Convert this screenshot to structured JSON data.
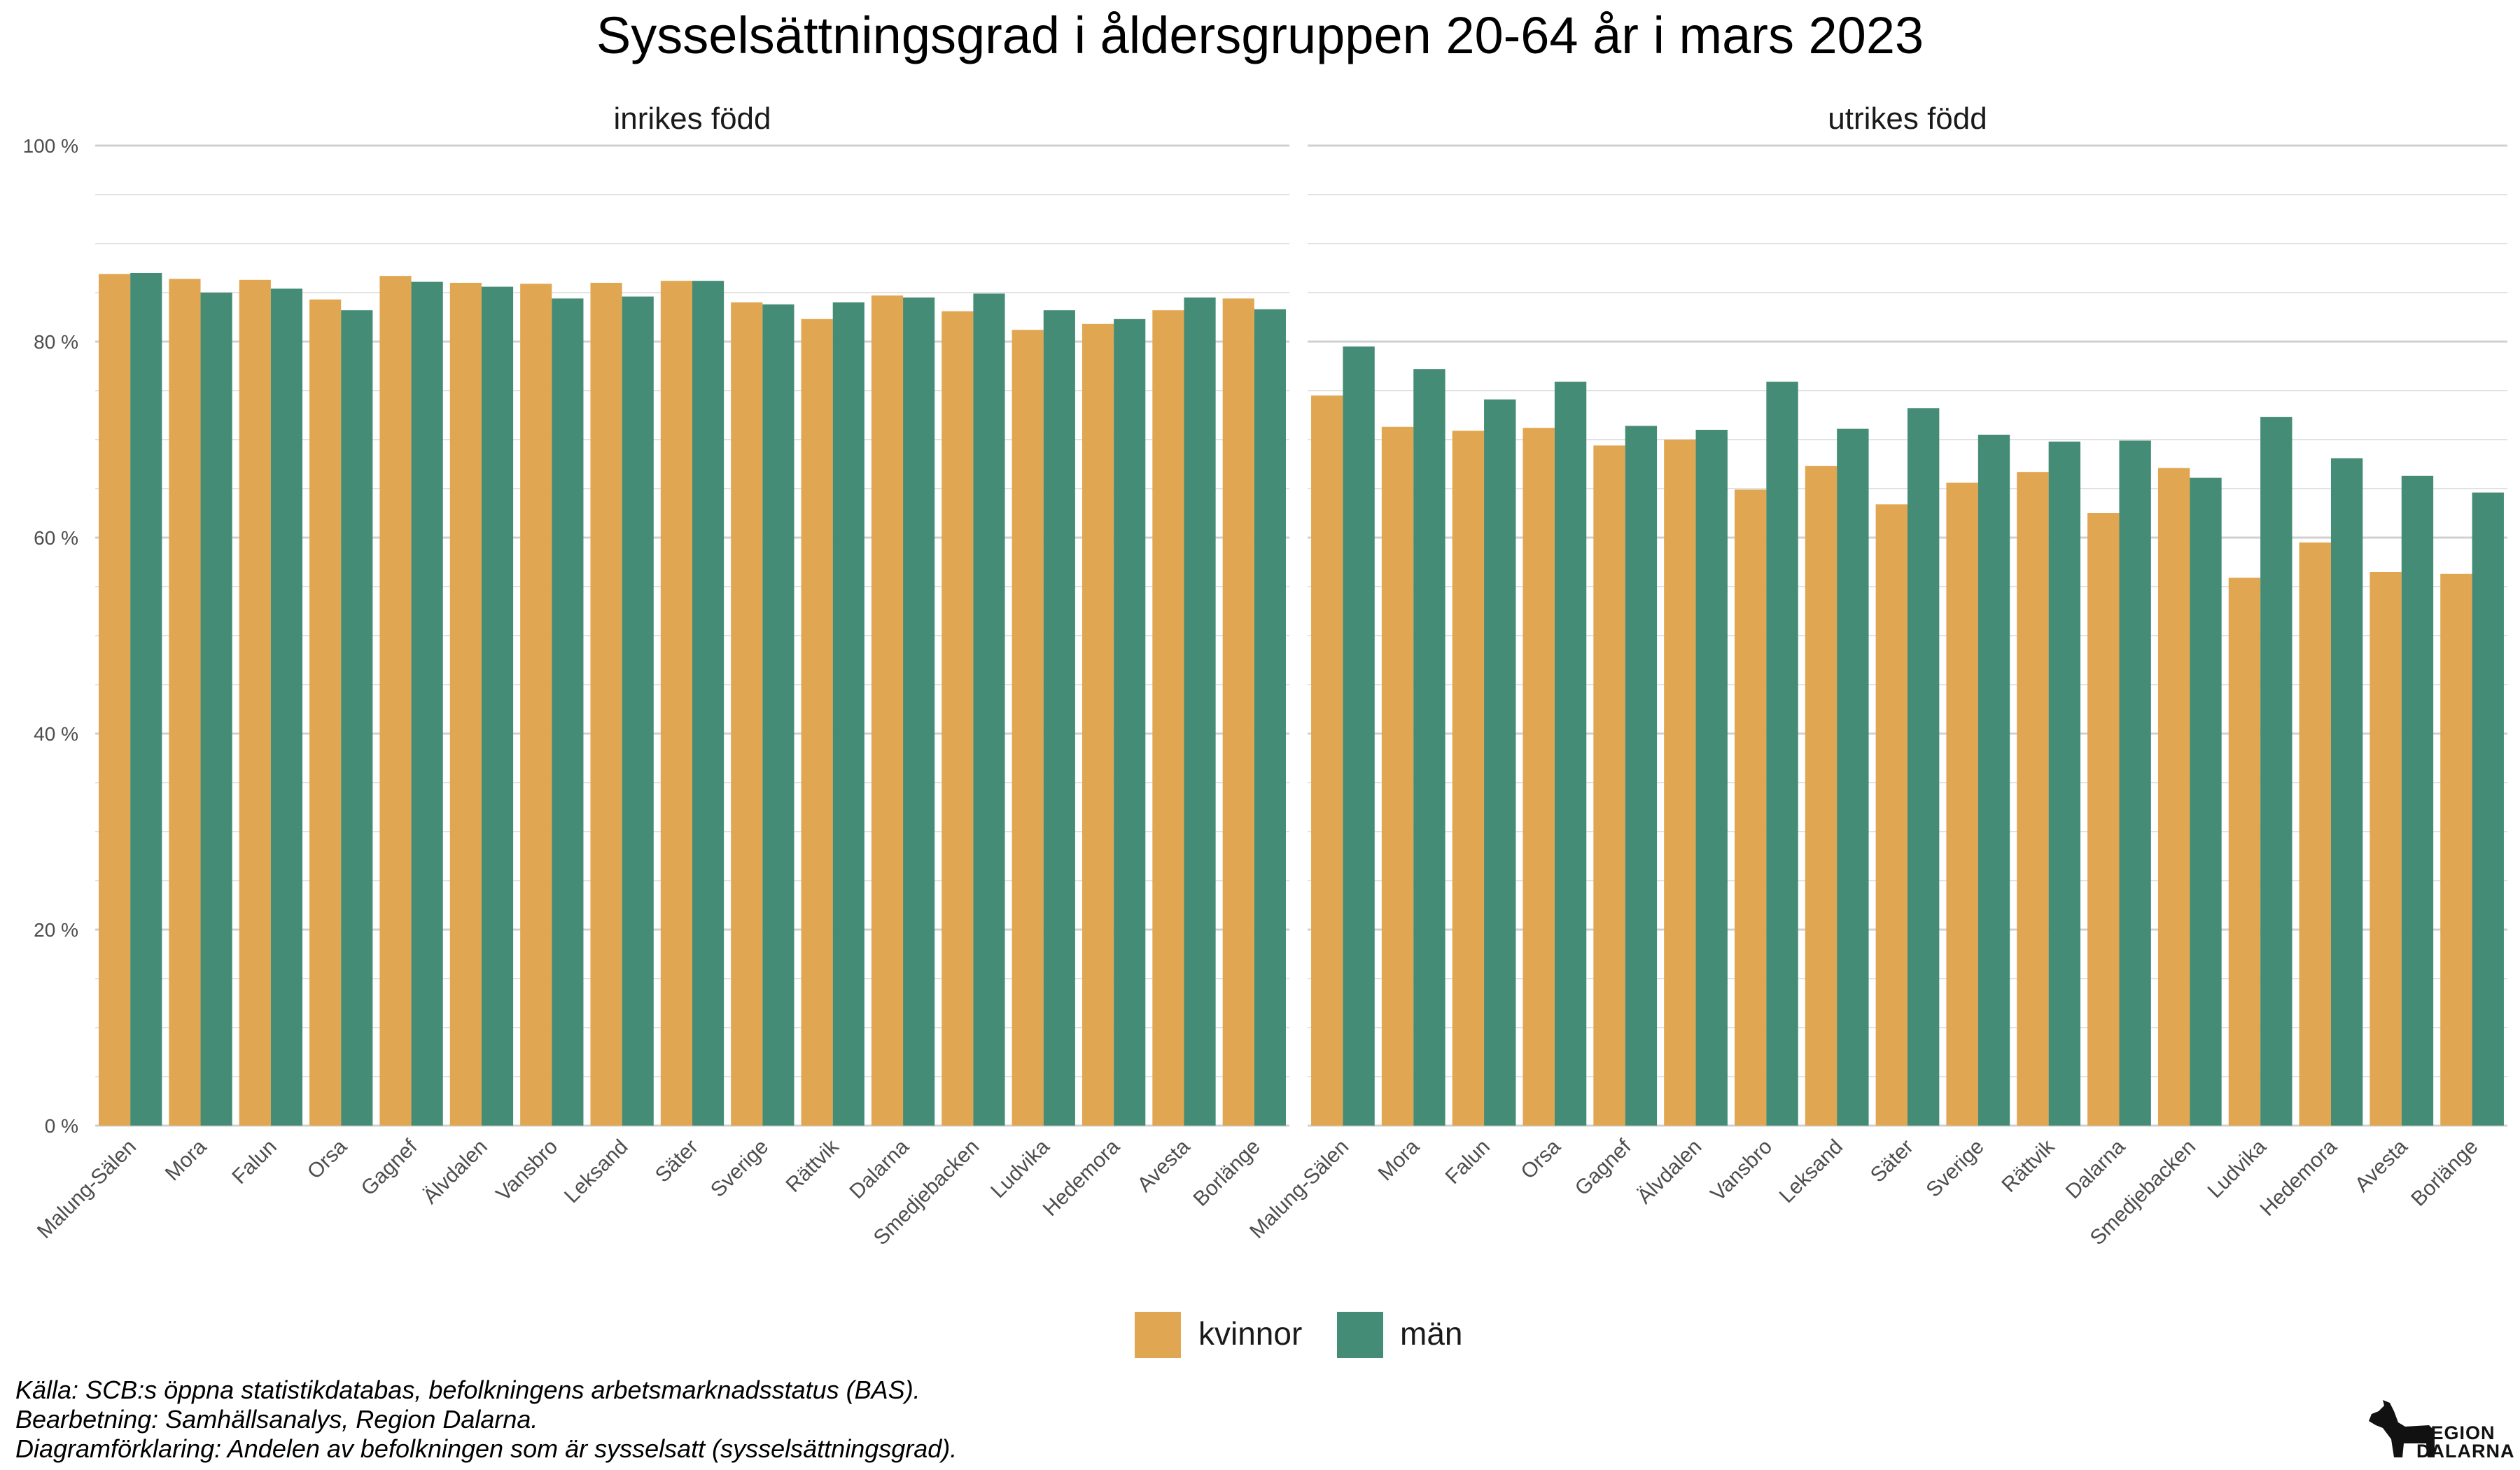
{
  "colors": {
    "kvinnor": "#E1A651",
    "man": "#448C76",
    "grid_major": "#d0d0d0",
    "grid_minor": "#e2e2e2"
  },
  "chart_data": {
    "type": "bar",
    "title": "Sysselsättningsgrad i åldersgruppen 20-64 år i mars 2023",
    "ylim": [
      0,
      100
    ],
    "yticks": [
      0,
      20,
      40,
      60,
      80,
      100
    ],
    "ytick_labels": [
      "0 %",
      "20 %",
      "40 %",
      "60 %",
      "80 %",
      "100 %"
    ],
    "legend_position": "bottom",
    "legend": [
      "kvinnor",
      "män"
    ],
    "panels": [
      {
        "label": "inrikes född",
        "categories": [
          "Malung-Sälen",
          "Mora",
          "Falun",
          "Orsa",
          "Gagnef",
          "Älvdalen",
          "Vansbro",
          "Leksand",
          "Säter",
          "Sverige",
          "Rättvik",
          "Dalarna",
          "Smedjebacken",
          "Ludvika",
          "Hedemora",
          "Avesta",
          "Borlänge"
        ],
        "series": [
          {
            "name": "kvinnor",
            "values": [
              86.9,
              86.4,
              86.3,
              84.3,
              86.7,
              86.0,
              85.9,
              86.0,
              86.2,
              84.0,
              82.3,
              84.7,
              83.1,
              81.2,
              81.8,
              83.2,
              84.4
            ]
          },
          {
            "name": "män",
            "values": [
              87.0,
              85.0,
              85.4,
              83.2,
              86.1,
              85.6,
              84.4,
              84.6,
              86.2,
              83.8,
              84.0,
              84.5,
              84.9,
              83.2,
              82.3,
              84.5,
              83.3
            ]
          }
        ]
      },
      {
        "label": "utrikes född",
        "categories": [
          "Malung-Sälen",
          "Mora",
          "Falun",
          "Orsa",
          "Gagnef",
          "Älvdalen",
          "Vansbro",
          "Leksand",
          "Säter",
          "Sverige",
          "Rättvik",
          "Dalarna",
          "Smedjebacken",
          "Ludvika",
          "Hedemora",
          "Avesta",
          "Borlänge"
        ],
        "series": [
          {
            "name": "kvinnor",
            "values": [
              74.5,
              71.3,
              70.9,
              71.2,
              69.4,
              70.0,
              64.9,
              67.3,
              63.4,
              65.6,
              66.7,
              62.5,
              67.1,
              55.9,
              59.5,
              56.5,
              56.3
            ]
          },
          {
            "name": "män",
            "values": [
              79.5,
              77.2,
              74.1,
              75.9,
              71.4,
              71.0,
              75.9,
              71.1,
              73.2,
              70.5,
              69.8,
              69.9,
              66.1,
              72.3,
              68.1,
              66.3,
              64.6
            ]
          }
        ]
      }
    ]
  },
  "caption": [
    "Källa: SCB:s öppna statistikdatabas, befolkningens arbetsmarknadsstatus (BAS).",
    "Bearbetning: Samhällsanalys, Region Dalarna.",
    "Diagramförklaring: Andelen av befolkningen som är sysselsatt (sysselsättningsgrad)."
  ],
  "logo": {
    "icon": "dala-horse-icon",
    "line1": "REGION",
    "line2": "DALARNA"
  }
}
